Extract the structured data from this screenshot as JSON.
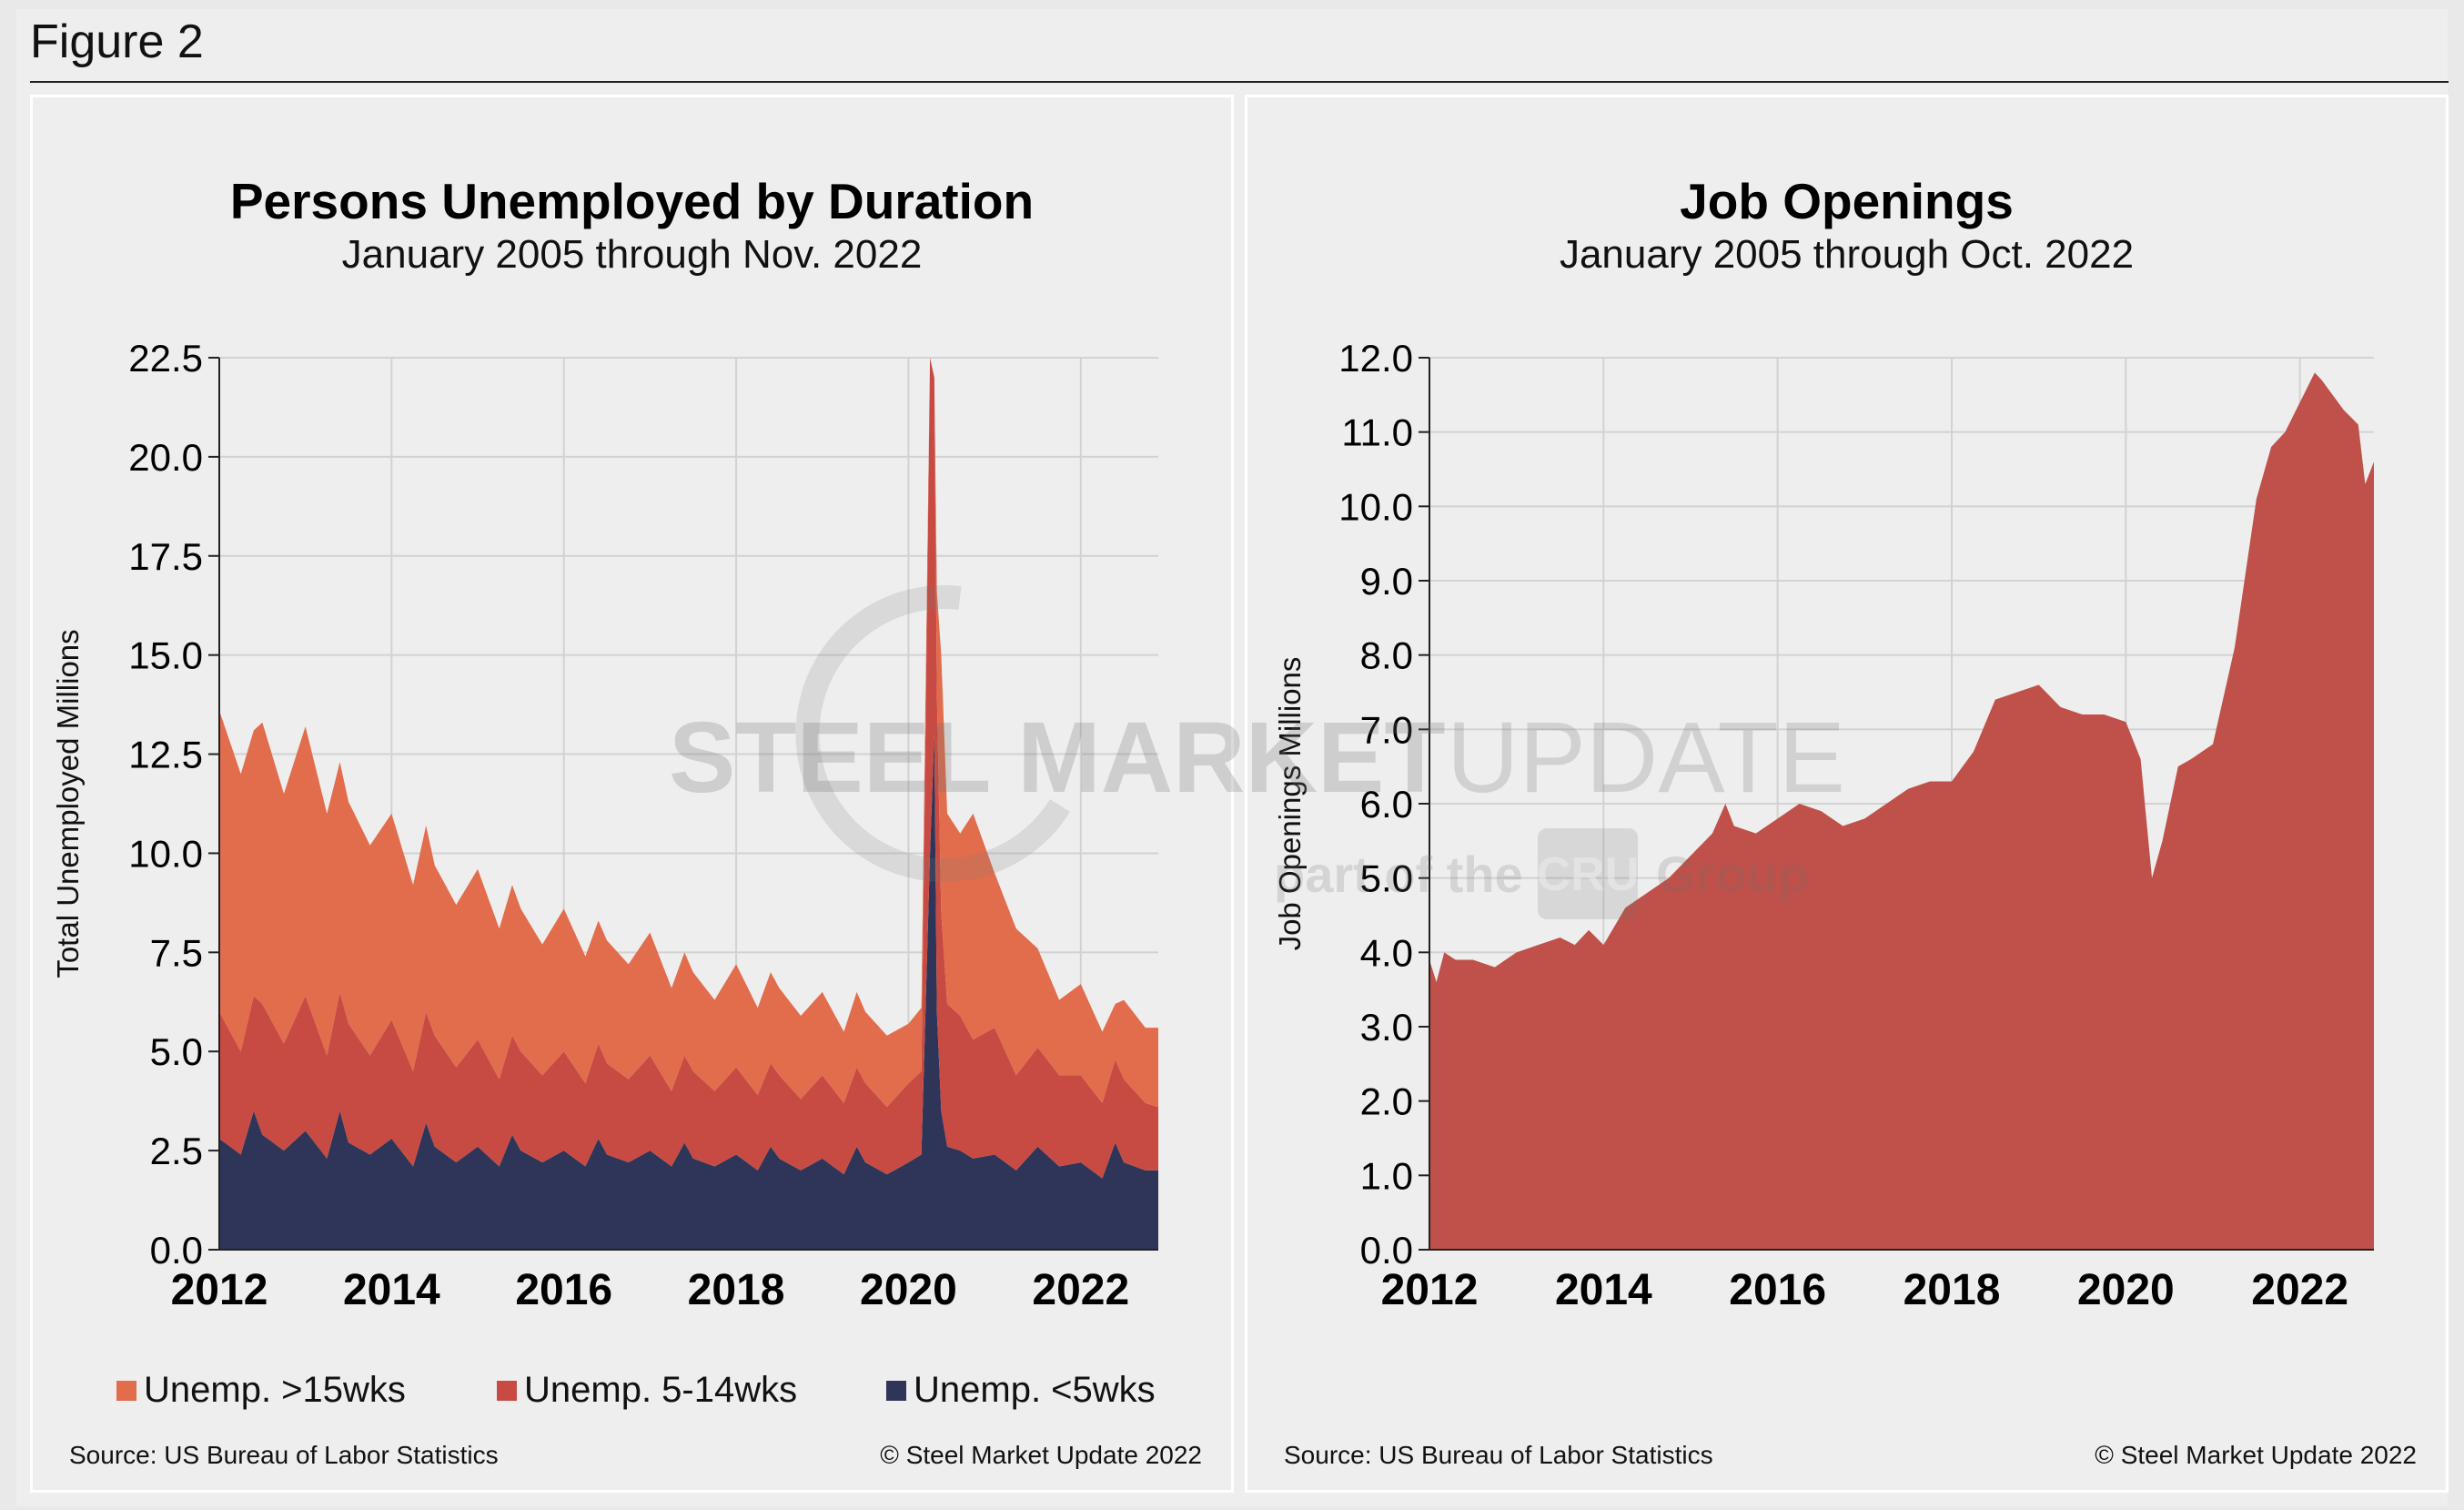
{
  "figure_label": "Figure 2",
  "watermark": {
    "line1_bold": "STEEL MARKET",
    "line1_light": "UPDATE",
    "line2_pre": "part of the",
    "line2_logo": "CRU",
    "line2_post": "Group"
  },
  "left_panel": {
    "source": "Source: US Bureau of Labor Statistics",
    "copyright": "© Steel Market Update 2022",
    "legend": [
      {
        "label": "Unemp. >15wks",
        "color": "#e26d4c"
      },
      {
        "label": "Unemp. 5-14wks",
        "color": "#c84b43"
      },
      {
        "label": "Unemp. <5wks",
        "color": "#2f3558"
      }
    ]
  },
  "right_panel": {
    "source": "Source: US Bureau of Labor Statistics",
    "copyright": "© Steel Market Update 2022"
  },
  "chart_data": [
    {
      "type": "area",
      "stacked": true,
      "title": "Persons Unemployed by Duration",
      "subtitle": "January 2005 through Nov. 2022",
      "ylabel": "Total Unemployed Millions",
      "xlabel": "",
      "ylim": [
        0,
        22.5
      ],
      "yticks": [
        "0.0",
        "2.5",
        "5.0",
        "7.5",
        "10.0",
        "12.5",
        "15.0",
        "17.5",
        "20.0",
        "22.5"
      ],
      "xlim": [
        2012.0,
        2022.9
      ],
      "xticks": [
        "2012",
        "2014",
        "2016",
        "2018",
        "2020",
        "2022"
      ],
      "grid": true,
      "legend_position": "bottom",
      "series": [
        {
          "name": "Unemp. <5wks",
          "color": "#2f3558",
          "x": [
            2012.0,
            2012.25,
            2012.4,
            2012.5,
            2012.75,
            2013.0,
            2013.25,
            2013.4,
            2013.5,
            2013.75,
            2014.0,
            2014.25,
            2014.4,
            2014.5,
            2014.75,
            2015.0,
            2015.25,
            2015.4,
            2015.5,
            2015.75,
            2016.0,
            2016.25,
            2016.4,
            2016.5,
            2016.75,
            2017.0,
            2017.25,
            2017.4,
            2017.5,
            2017.75,
            2018.0,
            2018.25,
            2018.4,
            2018.5,
            2018.75,
            2019.0,
            2019.25,
            2019.4,
            2019.5,
            2019.75,
            2020.0,
            2020.15,
            2020.25,
            2020.3,
            2020.33,
            2020.38,
            2020.45,
            2020.6,
            2020.75,
            2021.0,
            2021.25,
            2021.5,
            2021.75,
            2022.0,
            2022.25,
            2022.4,
            2022.5,
            2022.75,
            2022.9
          ],
          "values": [
            2.8,
            2.4,
            3.5,
            2.9,
            2.5,
            3.0,
            2.3,
            3.5,
            2.7,
            2.4,
            2.8,
            2.1,
            3.2,
            2.6,
            2.2,
            2.6,
            2.1,
            2.9,
            2.5,
            2.2,
            2.5,
            2.1,
            2.8,
            2.4,
            2.2,
            2.5,
            2.1,
            2.7,
            2.3,
            2.1,
            2.4,
            2.0,
            2.6,
            2.3,
            2.0,
            2.3,
            1.9,
            2.6,
            2.2,
            1.9,
            2.2,
            2.4,
            10.0,
            13.0,
            6.0,
            3.5,
            2.6,
            2.5,
            2.3,
            2.4,
            2.0,
            2.6,
            2.1,
            2.2,
            1.8,
            2.7,
            2.2,
            2.0,
            2.0
          ]
        },
        {
          "name": "Unemp. 5-14wks",
          "color": "#c84b43",
          "x": [
            2012.0,
            2012.25,
            2012.4,
            2012.5,
            2012.75,
            2013.0,
            2013.25,
            2013.4,
            2013.5,
            2013.75,
            2014.0,
            2014.25,
            2014.4,
            2014.5,
            2014.75,
            2015.0,
            2015.25,
            2015.4,
            2015.5,
            2015.75,
            2016.0,
            2016.25,
            2016.4,
            2016.5,
            2016.75,
            2017.0,
            2017.25,
            2017.4,
            2017.5,
            2017.75,
            2018.0,
            2018.25,
            2018.4,
            2018.5,
            2018.75,
            2019.0,
            2019.25,
            2019.4,
            2019.5,
            2019.75,
            2020.0,
            2020.15,
            2020.25,
            2020.3,
            2020.33,
            2020.38,
            2020.45,
            2020.6,
            2020.75,
            2021.0,
            2021.25,
            2021.5,
            2021.75,
            2022.0,
            2022.25,
            2022.4,
            2022.5,
            2022.75,
            2022.9
          ],
          "values": [
            3.2,
            2.6,
            2.9,
            3.3,
            2.7,
            3.4,
            2.6,
            3.0,
            3.0,
            2.5,
            3.0,
            2.4,
            2.8,
            2.8,
            2.4,
            2.7,
            2.2,
            2.5,
            2.5,
            2.2,
            2.5,
            2.1,
            2.4,
            2.3,
            2.1,
            2.4,
            1.9,
            2.2,
            2.2,
            1.9,
            2.2,
            1.9,
            2.1,
            2.1,
            1.8,
            2.1,
            1.8,
            2.0,
            2.0,
            1.7,
            2.0,
            2.1,
            12.5,
            9.0,
            8.0,
            5.0,
            3.6,
            3.4,
            3.0,
            3.2,
            2.4,
            2.5,
            2.3,
            2.2,
            1.9,
            2.1,
            2.1,
            1.7,
            1.6
          ]
        },
        {
          "name": "Unemp. >15wks",
          "color": "#e26d4c",
          "x": [
            2012.0,
            2012.25,
            2012.4,
            2012.5,
            2012.75,
            2013.0,
            2013.25,
            2013.4,
            2013.5,
            2013.75,
            2014.0,
            2014.25,
            2014.4,
            2014.5,
            2014.75,
            2015.0,
            2015.25,
            2015.4,
            2015.5,
            2015.75,
            2016.0,
            2016.25,
            2016.4,
            2016.5,
            2016.75,
            2017.0,
            2017.25,
            2017.4,
            2017.5,
            2017.75,
            2018.0,
            2018.25,
            2018.4,
            2018.5,
            2018.75,
            2019.0,
            2019.25,
            2019.4,
            2019.5,
            2019.75,
            2020.0,
            2020.15,
            2020.25,
            2020.3,
            2020.33,
            2020.38,
            2020.45,
            2020.6,
            2020.75,
            2021.0,
            2021.25,
            2021.5,
            2021.75,
            2022.0,
            2022.25,
            2022.4,
            2022.5,
            2022.75,
            2022.9
          ],
          "values": [
            7.6,
            7.0,
            6.7,
            7.1,
            6.3,
            6.8,
            6.1,
            5.8,
            5.6,
            5.3,
            5.2,
            4.7,
            4.7,
            4.3,
            4.1,
            4.3,
            3.8,
            3.8,
            3.6,
            3.3,
            3.6,
            3.2,
            3.1,
            3.1,
            2.9,
            3.1,
            2.6,
            2.6,
            2.5,
            2.3,
            2.6,
            2.2,
            2.3,
            2.2,
            2.1,
            2.1,
            1.8,
            1.9,
            1.8,
            1.8,
            1.5,
            1.6,
            0.0,
            0.0,
            2.6,
            6.5,
            4.8,
            4.6,
            5.7,
            3.9,
            3.7,
            2.5,
            1.9,
            2.3,
            1.8,
            1.4,
            2.0,
            1.9,
            2.0
          ]
        }
      ]
    },
    {
      "type": "area",
      "title": "Job Openings",
      "subtitle": "January 2005 through Oct. 2022",
      "ylabel": "Job Openings Millions",
      "xlabel": "",
      "ylim": [
        0,
        12
      ],
      "yticks": [
        "0.0",
        "1.0",
        "2.0",
        "3.0",
        "4.0",
        "5.0",
        "6.0",
        "7.0",
        "8.0",
        "9.0",
        "10.0",
        "11.0",
        "12.0"
      ],
      "xlim": [
        2012.0,
        2022.85
      ],
      "xticks": [
        "2012",
        "2014",
        "2016",
        "2018",
        "2020",
        "2022"
      ],
      "grid": true,
      "series": [
        {
          "name": "Job Openings",
          "color": "#c0514a",
          "x": [
            2012.0,
            2012.08,
            2012.17,
            2012.3,
            2012.5,
            2012.75,
            2013.0,
            2013.25,
            2013.5,
            2013.67,
            2013.83,
            2014.0,
            2014.25,
            2014.5,
            2014.75,
            2015.0,
            2015.25,
            2015.4,
            2015.5,
            2015.75,
            2016.0,
            2016.25,
            2016.5,
            2016.75,
            2017.0,
            2017.25,
            2017.5,
            2017.75,
            2018.0,
            2018.25,
            2018.5,
            2018.75,
            2019.0,
            2019.25,
            2019.5,
            2019.75,
            2020.0,
            2020.17,
            2020.3,
            2020.42,
            2020.6,
            2020.75,
            2021.0,
            2021.25,
            2021.5,
            2021.67,
            2021.83,
            2022.0,
            2022.17,
            2022.25,
            2022.5,
            2022.67,
            2022.75,
            2022.85
          ],
          "values": [
            3.9,
            3.6,
            4.0,
            3.9,
            3.9,
            3.8,
            4.0,
            4.1,
            4.2,
            4.1,
            4.3,
            4.1,
            4.6,
            4.8,
            5.0,
            5.3,
            5.6,
            6.0,
            5.7,
            5.6,
            5.8,
            6.0,
            5.9,
            5.7,
            5.8,
            6.0,
            6.2,
            6.3,
            6.3,
            6.7,
            7.4,
            7.5,
            7.6,
            7.3,
            7.2,
            7.2,
            7.1,
            6.6,
            5.0,
            5.5,
            6.5,
            6.6,
            6.8,
            8.1,
            10.1,
            10.8,
            11.0,
            11.4,
            11.8,
            11.7,
            11.3,
            11.1,
            10.3,
            10.6
          ]
        }
      ]
    }
  ]
}
